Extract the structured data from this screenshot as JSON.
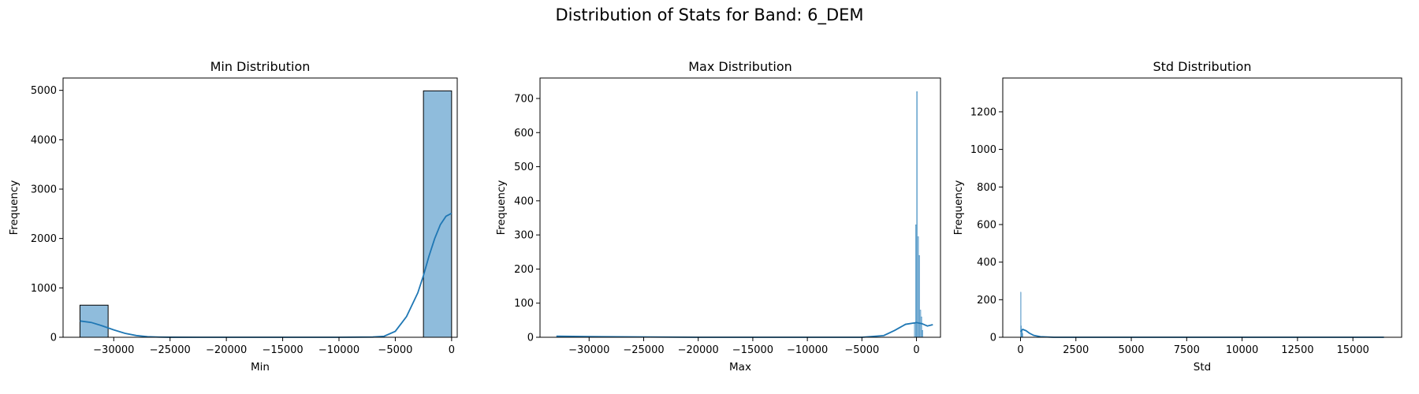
{
  "figure_title": "Distribution of Stats for Band: 6_DEM",
  "chart_data": [
    {
      "type": "histogram",
      "title": "Min Distribution",
      "xlabel": "Min",
      "ylabel": "Frequency",
      "xlim": [
        -34500,
        500
      ],
      "ylim": [
        0,
        5250
      ],
      "xticks": [
        -30000,
        -25000,
        -20000,
        -15000,
        -10000,
        -5000,
        0
      ],
      "yticks": [
        0,
        1000,
        2000,
        3000,
        4000,
        5000
      ],
      "bars": [
        {
          "x0": -33000,
          "x1": -30500,
          "value": 650
        },
        {
          "x0": -2500,
          "x1": 0,
          "value": 4990
        }
      ],
      "kde": [
        [
          -33000,
          330
        ],
        [
          -32000,
          300
        ],
        [
          -31000,
          230
        ],
        [
          -30000,
          150
        ],
        [
          -29000,
          80
        ],
        [
          -28000,
          35
        ],
        [
          -27000,
          12
        ],
        [
          -26000,
          4
        ],
        [
          -25000,
          1
        ],
        [
          -20000,
          0
        ],
        [
          -10000,
          0
        ],
        [
          -7000,
          5
        ],
        [
          -6000,
          20
        ],
        [
          -5000,
          120
        ],
        [
          -4000,
          420
        ],
        [
          -3000,
          900
        ],
        [
          -2500,
          1250
        ],
        [
          -2000,
          1650
        ],
        [
          -1500,
          2000
        ],
        [
          -1000,
          2280
        ],
        [
          -500,
          2450
        ],
        [
          0,
          2510
        ]
      ],
      "bar_color": "#8fbcdc",
      "line_color": "#1f77b4"
    },
    {
      "type": "histogram",
      "title": "Max Distribution",
      "xlabel": "Max",
      "ylabel": "Frequency",
      "xlim": [
        -34500,
        2200
      ],
      "ylim": [
        0,
        760
      ],
      "xticks": [
        -30000,
        -25000,
        -20000,
        -15000,
        -10000,
        -5000,
        0
      ],
      "yticks": [
        0,
        100,
        200,
        300,
        400,
        500,
        600,
        700
      ],
      "bars": [
        {
          "x0": -200,
          "x1": -100,
          "value": 40
        },
        {
          "x0": -100,
          "x1": 0,
          "value": 330
        },
        {
          "x0": 0,
          "x1": 100,
          "value": 720
        },
        {
          "x0": 100,
          "x1": 200,
          "value": 295
        },
        {
          "x0": 200,
          "x1": 300,
          "value": 240
        },
        {
          "x0": 300,
          "x1": 400,
          "value": 80
        },
        {
          "x0": 400,
          "x1": 500,
          "value": 60
        },
        {
          "x0": 500,
          "x1": 600,
          "value": 20
        }
      ],
      "kde": [
        [
          -33000,
          3
        ],
        [
          -30000,
          2
        ],
        [
          -20000,
          0
        ],
        [
          -5000,
          0
        ],
        [
          -3000,
          5
        ],
        [
          -2000,
          20
        ],
        [
          -1000,
          38
        ],
        [
          0,
          43
        ],
        [
          500,
          40
        ],
        [
          1000,
          33
        ],
        [
          1500,
          37
        ]
      ],
      "bar_color": "#8fbcdc",
      "line_color": "#1f77b4"
    },
    {
      "type": "histogram",
      "title": "Std Distribution",
      "xlabel": "Std",
      "ylabel": "Frequency",
      "xlim": [
        -800,
        17200
      ],
      "ylim": [
        0,
        1380
      ],
      "xticks": [
        0,
        2500,
        5000,
        7500,
        10000,
        12500,
        15000
      ],
      "yticks": [
        0,
        200,
        400,
        600,
        800,
        1000,
        1200
      ],
      "bars": [
        {
          "x0": 0,
          "x1": 20,
          "value": 240
        },
        {
          "x0": 20,
          "x1": 40,
          "value": 60
        },
        {
          "x0": 40,
          "x1": 60,
          "value": 40
        },
        {
          "x0": 60,
          "x1": 80,
          "value": 30
        },
        {
          "x0": 80,
          "x1": 100,
          "value": 20
        }
      ],
      "kde": [
        [
          0,
          30
        ],
        [
          100,
          42
        ],
        [
          250,
          35
        ],
        [
          400,
          22
        ],
        [
          600,
          10
        ],
        [
          900,
          3
        ],
        [
          1500,
          0
        ],
        [
          16400,
          0
        ]
      ],
      "bar_color": "#8fbcdc",
      "line_color": "#1f77b4"
    }
  ]
}
